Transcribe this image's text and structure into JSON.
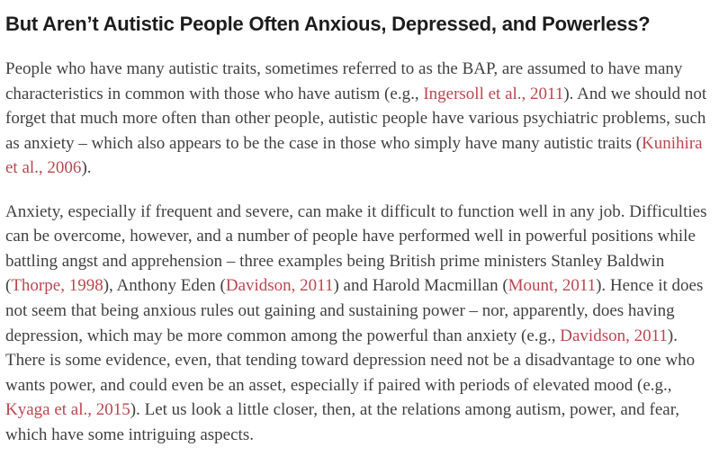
{
  "theme": {
    "heading_color": "#1d1d1d",
    "body_text_color": "#414141",
    "link_color": "#b9474f",
    "background_color": "#ffffff"
  },
  "article": {
    "heading": "But Aren’t Autistic People Often Anxious, Depressed, and Powerless?",
    "paragraphs": [
      {
        "segments": [
          {
            "type": "text",
            "text": "People who have many autistic traits, sometimes referred to as the BAP, are assumed to have many characteristics in common with those who have autism (e.g., "
          },
          {
            "type": "link",
            "text": "Ingersoll et al., 2011"
          },
          {
            "type": "text",
            "text": "). And we should not forget that much more often than other people, autistic people have various psychiatric problems, such as anxiety – which also appears to be the case in those who simply have many autistic traits ("
          },
          {
            "type": "link",
            "text": "Kunihira et al., 2006"
          },
          {
            "type": "text",
            "text": ")."
          }
        ]
      },
      {
        "segments": [
          {
            "type": "text",
            "text": "Anxiety, especially if frequent and severe, can make it difficult to function well in any job. Difficulties can be overcome, however, and a number of people have performed well in powerful positions while battling angst and apprehension – three examples being British prime ministers Stanley Baldwin ("
          },
          {
            "type": "link",
            "text": "Thorpe, 1998"
          },
          {
            "type": "text",
            "text": "), Anthony Eden ("
          },
          {
            "type": "link",
            "text": "Davidson, 2011"
          },
          {
            "type": "text",
            "text": ") and Harold Macmillan ("
          },
          {
            "type": "link",
            "text": "Mount, 2011"
          },
          {
            "type": "text",
            "text": "). Hence it does not seem that being anxious rules out gaining and sustaining power – nor, apparently, does having depression, which may be more common among the powerful than anxiety (e.g., "
          },
          {
            "type": "link",
            "text": "Davidson, 2011"
          },
          {
            "type": "text",
            "text": "). There is some evidence, even, that tending toward depression need not be a disadvantage to one who wants power, and could even be an asset, especially if paired with periods of elevated mood (e.g., "
          },
          {
            "type": "link",
            "text": "Kyaga et al., 2015"
          },
          {
            "type": "text",
            "text": "). Let us look a little closer, then, at the relations among autism, power, and fear, which have some intriguing aspects."
          }
        ]
      }
    ]
  }
}
